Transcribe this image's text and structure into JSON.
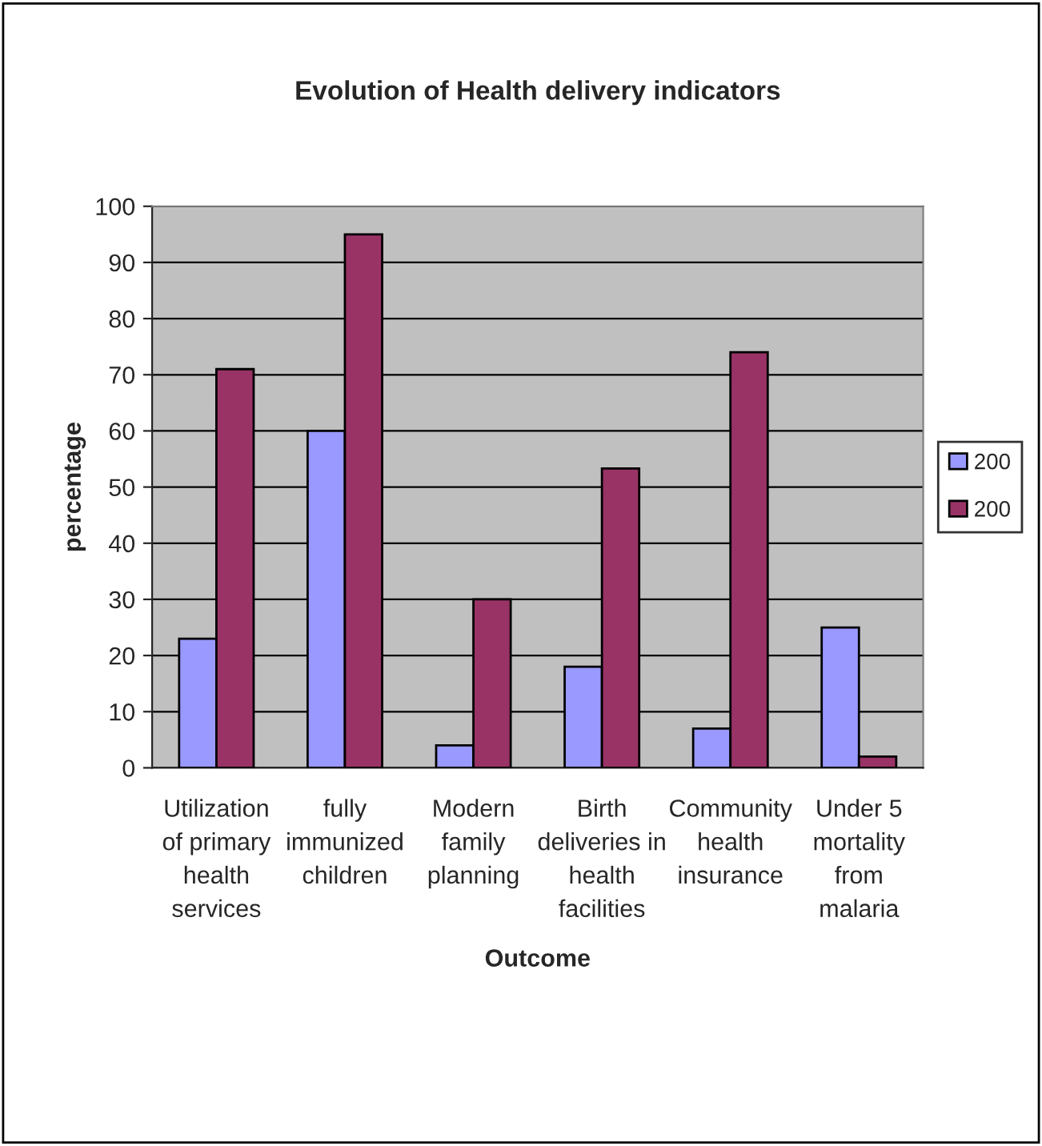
{
  "chart_data": {
    "type": "bar",
    "title": "Evolution of Health delivery indicators",
    "xlabel": "Outcome",
    "ylabel": "percentage",
    "categories": [
      "Utilization\nof primary\nhealth\nservices",
      "fully\nimmunized\nchildren",
      "Modern\nfamily\nplanning",
      "Birth\ndeliveries in\nhealth\nfacilities",
      "Community\nhealth\ninsurance",
      "Under 5\nmortality\nfrom\nmalaria"
    ],
    "series": [
      {
        "name": "200",
        "color": "#9999ff",
        "values": [
          23,
          60,
          4,
          18,
          7,
          25
        ]
      },
      {
        "name": "200",
        "color": "#993366",
        "values": [
          71,
          95,
          30,
          53.3,
          74,
          2
        ]
      }
    ],
    "ylim": [
      0,
      100
    ],
    "yticks": [
      0,
      10,
      20,
      30,
      40,
      50,
      60,
      70,
      80,
      90,
      100
    ],
    "grid": "y",
    "legend": "right"
  }
}
